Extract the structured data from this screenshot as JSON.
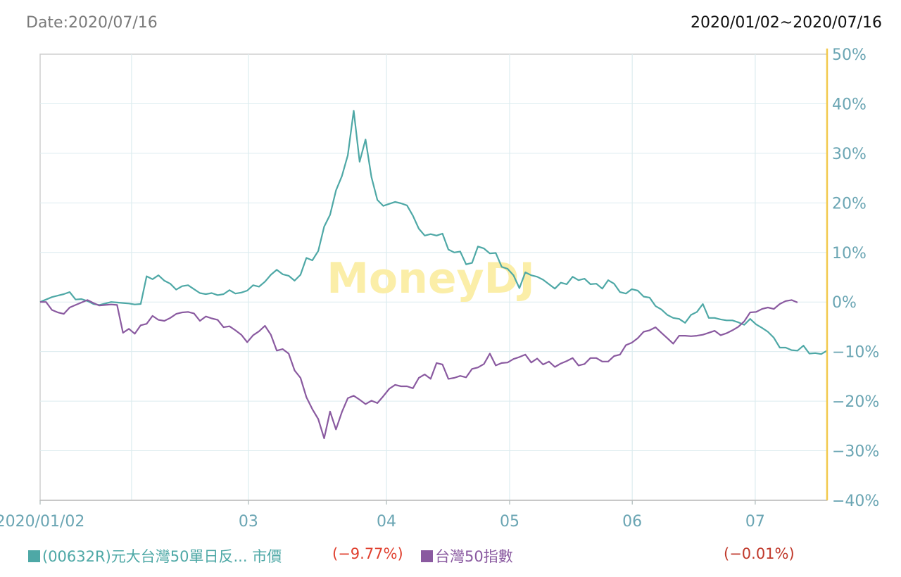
{
  "header": {
    "date_label": "Date:2020/07/16",
    "range_label": "2020/01/02~2020/07/16"
  },
  "watermark": "MoneyDJ",
  "legend": {
    "items": [
      {
        "label": "(00632R)元大台灣50單日反... 市價",
        "change": "(−9.77%)",
        "color": "#4ea8a6",
        "change_color": "#e0402f"
      },
      {
        "label": "台灣50指數",
        "change": "(−0.01%)",
        "color": "#8a5aa0",
        "change_color": "#c0392b"
      }
    ]
  },
  "chart_data": {
    "type": "line",
    "x_tick_labels": [
      "2020/01/02",
      "03",
      "04",
      "05",
      "06",
      "07"
    ],
    "y_tick_labels": [
      "50%",
      "40%",
      "30%",
      "20%",
      "10%",
      "0%",
      "−10%",
      "−20%",
      "−30%",
      "−40%"
    ],
    "ylim": [
      -40,
      50
    ],
    "y_axis_position": "right",
    "grid": true,
    "colors": {
      "axis": "#6aa5b3",
      "grid": "#dcecef",
      "right_axis": "#f2c94c",
      "watermark": "#fbeea8"
    },
    "series": [
      {
        "name": "(00632R)元大台灣50單日反... 市價",
        "color": "#4ea8a6",
        "values": [
          0,
          0.5,
          1,
          1.3,
          1.6,
          2,
          0.5,
          0.6,
          0.2,
          -0.4,
          -0.6,
          -0.3,
          0,
          -0.1,
          -0.2,
          -0.3,
          -0.5,
          -0.4,
          5.2,
          4.6,
          5.4,
          4.3,
          3.7,
          2.5,
          3.2,
          3.4,
          2.6,
          1.8,
          1.6,
          1.8,
          1.4,
          1.6,
          2.4,
          1.7,
          1.9,
          2.3,
          3.4,
          3.1,
          4.1,
          5.5,
          6.5,
          5.6,
          5.3,
          4.3,
          5.5,
          8.9,
          8.4,
          10.3,
          15.2,
          17.6,
          22.5,
          25.4,
          29.6,
          38.6,
          28.3,
          32.8,
          25.2,
          20.6,
          19.4,
          19.8,
          20.2,
          19.9,
          19.5,
          17.4,
          14.8,
          13.4,
          13.7,
          13.4,
          13.8,
          10.6,
          10,
          10.2,
          7.6,
          7.9,
          11.2,
          10.8,
          9.8,
          9.9,
          7.1,
          6.7,
          5.4,
          2.8,
          6,
          5.4,
          5.1,
          4.5,
          3.6,
          2.7,
          3.9,
          3.6,
          5.1,
          4.4,
          4.7,
          3.6,
          3.7,
          2.7,
          4.4,
          3.7,
          2,
          1.7,
          2.6,
          2.3,
          1.1,
          0.9,
          -0.8,
          -1.5,
          -2.6,
          -3.2,
          -3.4,
          -4.2,
          -2.6,
          -2,
          -0.4,
          -3.2,
          -3.2,
          -3.5,
          -3.7,
          -3.7,
          -4.1,
          -4.6,
          -3.4,
          -4.5,
          -5.2,
          -6,
          -7.2,
          -9.2,
          -9.2,
          -9.7,
          -9.8,
          -8.8,
          -10.4,
          -10.3,
          -10.5,
          -9.8
        ]
      },
      {
        "name": "台灣50指數",
        "color": "#8a5aa0",
        "values": [
          0,
          0,
          -1.6,
          -2.1,
          -2.4,
          -1.1,
          -0.6,
          -0.1,
          0.4,
          -0.2,
          -0.7,
          -0.6,
          -0.5,
          -0.6,
          -6.2,
          -5.4,
          -6.4,
          -4.7,
          -4.4,
          -2.8,
          -3.6,
          -3.8,
          -3.2,
          -2.4,
          -2.1,
          -2,
          -2.3,
          -3.8,
          -2.9,
          -3.3,
          -3.6,
          -5.1,
          -4.9,
          -5.7,
          -6.6,
          -8.1,
          -6.7,
          -5.9,
          -4.8,
          -6.6,
          -9.8,
          -9.5,
          -10.4,
          -13.8,
          -15.3,
          -19.2,
          -21.6,
          -23.6,
          -27.5,
          -22.1,
          -25.7,
          -22.2,
          -19.4,
          -18.9,
          -19.7,
          -20.6,
          -19.9,
          -20.4,
          -19,
          -17.5,
          -16.7,
          -17,
          -17,
          -17.4,
          -15.3,
          -14.6,
          -15.5,
          -12.3,
          -12.6,
          -15.5,
          -15.3,
          -14.9,
          -15.2,
          -13.5,
          -13.2,
          -12.5,
          -10.4,
          -12.8,
          -12.3,
          -12.2,
          -11.5,
          -11.1,
          -10.6,
          -12.2,
          -11.4,
          -12.6,
          -12,
          -13.1,
          -12.4,
          -11.9,
          -11.3,
          -12.8,
          -12.5,
          -11.3,
          -11.3,
          -12,
          -12,
          -10.9,
          -10.6,
          -8.7,
          -8.2,
          -7.3,
          -6,
          -5.7,
          -5.1,
          -6.2,
          -7.3,
          -8.4,
          -6.8,
          -6.8,
          -6.9,
          -6.8,
          -6.6,
          -6.2,
          -5.8,
          -6.7,
          -6.3,
          -5.7,
          -5,
          -3.9,
          -2.1,
          -2,
          -1.4,
          -1.1,
          -1.4,
          -0.4,
          0.2,
          0.4,
          -0.1
        ]
      }
    ]
  }
}
